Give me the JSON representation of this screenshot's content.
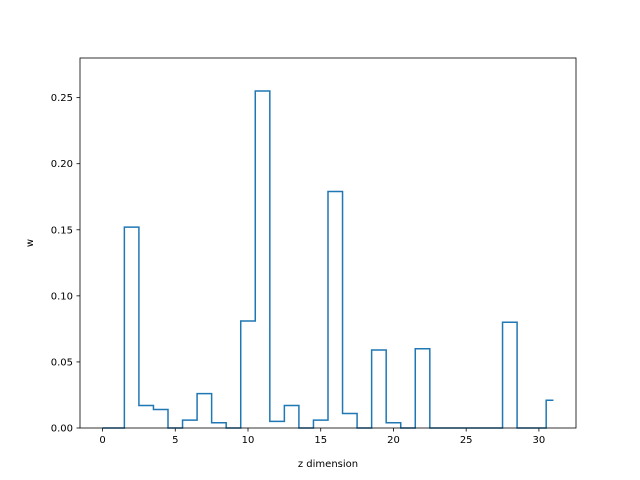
{
  "chart_data": {
    "type": "line",
    "drawstyle": "steps-mid",
    "title": "",
    "xlabel": "z dimension",
    "ylabel": "w",
    "xlim": [
      -1.55,
      32.55
    ],
    "ylim": [
      0.0,
      0.28
    ],
    "grid": false,
    "legend": "none",
    "x_ticks": [
      0,
      5,
      10,
      15,
      20,
      25,
      30
    ],
    "x_tick_labels": [
      "0",
      "5",
      "10",
      "15",
      "20",
      "25",
      "30"
    ],
    "y_ticks": [
      0.0,
      0.05,
      0.1,
      0.15,
      0.2,
      0.25
    ],
    "y_tick_labels": [
      "0.00",
      "0.05",
      "0.10",
      "0.15",
      "0.20",
      "0.25"
    ],
    "series": [
      {
        "color": "#1f77b4",
        "x": [
          0,
          1,
          2,
          3,
          4,
          5,
          6,
          7,
          8,
          9,
          10,
          11,
          12,
          13,
          14,
          15,
          16,
          17,
          18,
          19,
          20,
          21,
          22,
          23,
          24,
          25,
          26,
          27,
          28,
          29,
          30,
          31
        ],
        "values": [
          0.0,
          0.0,
          0.152,
          0.017,
          0.014,
          0.0,
          0.006,
          0.026,
          0.004,
          0.0,
          0.081,
          0.255,
          0.005,
          0.017,
          0.0,
          0.006,
          0.179,
          0.011,
          0.0,
          0.059,
          0.004,
          0.0,
          0.06,
          0.0,
          0.0,
          0.0,
          0.0,
          0.0,
          0.08,
          0.0,
          0.0,
          0.021
        ]
      }
    ]
  }
}
